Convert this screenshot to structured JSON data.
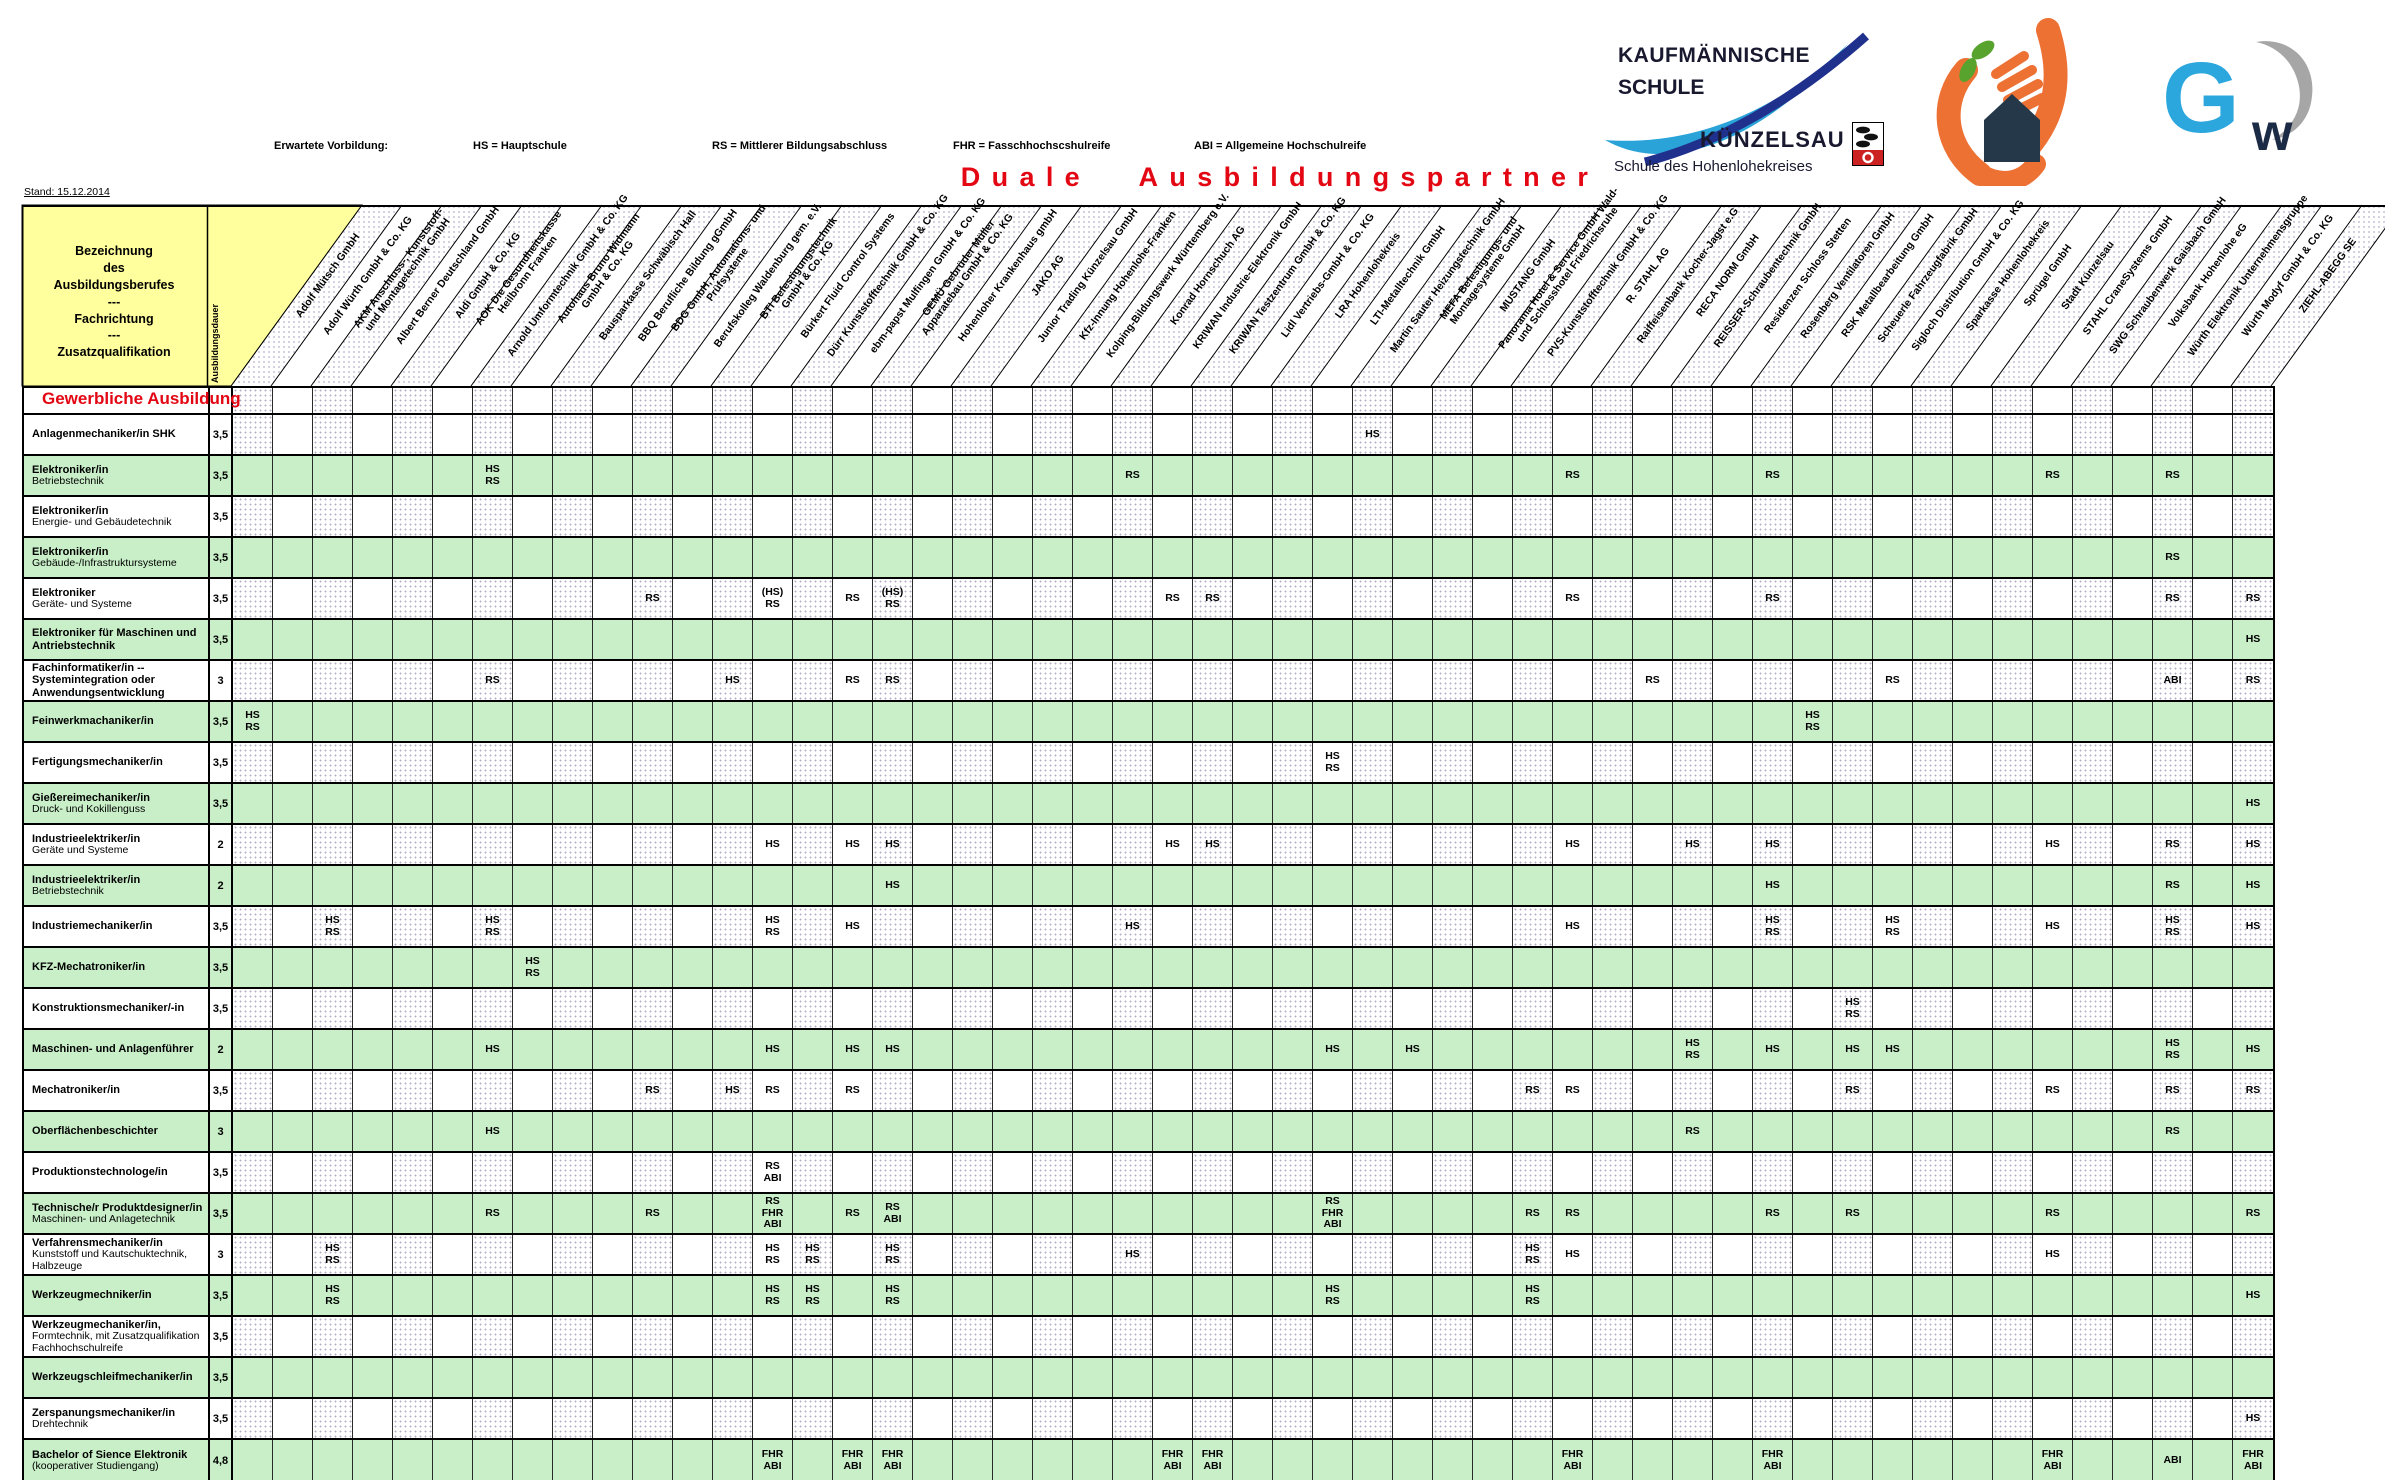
{
  "meta": {
    "stand": "Stand: 15.12.2014"
  },
  "title": "Duale Ausbildungspartner",
  "legend": {
    "title": "Erwartete Vorbildung:",
    "items": [
      "HS = Hauptschule",
      "RS = Mittlerer Bildungsabschluss",
      "FHR = Fasschhochscshulreife",
      "ABI = Allgemeine Hochschulreife"
    ]
  },
  "branding": {
    "school_line1": "KAUFMÄNNISCHE",
    "school_line2": "SCHULE",
    "school_city": "KÜNZELSAU",
    "school_subtitle": "Schule des Hohenlohekreises",
    "gw_g": "G",
    "gw_w": "w"
  },
  "colors": {
    "green": "#c8efc8",
    "yellow": "#ffff9d",
    "red": "#e30613",
    "blue_light": "#2aa3d8",
    "blue_dark": "#20318d",
    "orange": "#ee7134",
    "navy": "#25384a",
    "leaf": "#58a32e",
    "gw_blue": "#2ba7de"
  },
  "table": {
    "corner_header": "Bezeichnung\ndes\nAusbildungsberufes\n---\nFachrichtung\n---\nZusatzqualifikation",
    "duration_header": "Ausbildungsdauer",
    "section": "Gewerbliche Ausbildung",
    "companies": [
      "Adolf Mütsch GmbH",
      "Adolf Würth GmbH & Co. KG",
      "AKM Anschluss-, Kunststoff-\nund Montagetechnik GmbH",
      "Albert Berner Deutschland GmbH",
      "Aldi GmbH & Co. KG",
      "AOK Die Gesundheitskasse\nHeilbronn Franken",
      "Arnold Umformtechnik GmbH & Co. KG",
      "Autohaus Bruno Widmann\nGmbH & Co. KG",
      "Bausparkasse Schwäbisch Hall",
      "BBQ Berufliche Bildung gGmbH",
      "BDG GmbH, Automations- und\nPrüfsysteme",
      "Berufskolleg Waldenburg gem. e.V.",
      "BTI Befestigungstechnik\nGmbH & Co. KG",
      "Bürkert Fluid Control Systems",
      "Dürr Kunststofftechnik GmbH & Co. KG",
      "ebm-papst Mulfingen GmbH & Co. KG",
      "GEMÜ Gebrüder Müller\nApparatebau GmbH & Co. KG",
      "Hohenloher Krankenhaus gmbH",
      "JAKO AG",
      "Junior Trading Künzelsau GmbH",
      "Kfz-Innung Hohenlohe-Franken",
      "Kolping-Bildungswerk Württemberg e.V.",
      "Konrad Hornschuch AG",
      "KRIWAN Industrie-Elektronik GmbH",
      "KRIWAN Testzentrum GmbH & Co. KG",
      "Lidl Vertriebs-GmbH & Co. KG",
      "LRA Hohenlohekreis",
      "LTI-Metalltechnik GmbH",
      "Martin Sauter Heizungstechnik GmbH",
      "MEFA Befestigungs- und\nMontagesysteme GmbH",
      "MUSTANG GmbH",
      "Panorama Hotel & Service GmbH Wald-\nund Schlosshotel Friedrichsruhe",
      "PVS-Kunststofftechnik GmbH & Co. KG",
      "R. STAHL AG",
      "Raiffeisenbank Kocher-Jagst e.G",
      "RECA NORM GmbH",
      "REISSER-Schraubentechnik GmbH",
      "Residenzen Schloss Stetten",
      "Rosenberg Ventilatoren GmbH",
      "RSK Metallbearbeitung GmbH",
      "Scheuerle Fahrzeugfabrik GmbH",
      "Sigloch Distribution GmbH & Co. KG",
      "Sparkasse Hohenlohekreis",
      "Sprügel GmbH",
      "Stadt Künzelsau",
      "STAHL CraneSystems GmbH",
      "SWG Schraubenwerk Gaisbach GmbH",
      "Volksbank Hohenlohe eG",
      "Würth Elektronik Unternehmensgruppe",
      "Würth Modyf GmbH & Co. KG",
      "ZIEHL-ABEGG SE"
    ],
    "rows": [
      {
        "title": "Anlagenmechaniker/in SHK",
        "subtitle": "",
        "duration": "3,5",
        "cells": {
          "29": "HS"
        }
      },
      {
        "title": "Elektroniker/in",
        "subtitle": "Betriebstechnik",
        "duration": "3,5",
        "cells": {
          "7": "HS\nRS",
          "23": "RS",
          "34": "RS",
          "39": "RS",
          "46": "RS",
          "49": "RS"
        }
      },
      {
        "title": "Elektroniker/in",
        "subtitle": "Energie- und Gebäudetechnik",
        "duration": "3,5",
        "cells": {}
      },
      {
        "title": "Elektroniker/in",
        "subtitle": "Gebäude-/Infrastruktursysteme",
        "duration": "3,5",
        "cells": {
          "49": "RS"
        }
      },
      {
        "title": "Elektroniker",
        "subtitle": "Geräte- und Systeme",
        "duration": "3,5",
        "cells": {
          "11": "RS",
          "14": "(HS)\nRS",
          "16": "RS",
          "17": "(HS)\nRS",
          "24": "RS",
          "25": "RS",
          "34": "RS",
          "39": "RS",
          "49": "RS",
          "51": "RS"
        }
      },
      {
        "title": "Elektroniker für Maschinen und\nAntriebstechnik",
        "subtitle": "",
        "duration": "3,5",
        "cells": {
          "51": "HS"
        }
      },
      {
        "title": "Fachinformatiker/in --\nSystemintegration oder\nAnwendungsentwicklung",
        "subtitle": "",
        "duration": "3",
        "cells": {
          "7": "RS",
          "13": "HS",
          "16": "RS",
          "17": "RS",
          "36": "RS",
          "42": "RS",
          "49": "ABI",
          "51": "RS"
        }
      },
      {
        "title": "Feinwerkmachaniker/in",
        "subtitle": "",
        "duration": "3,5",
        "cells": {
          "1": "HS\nRS",
          "40": "HS\nRS"
        }
      },
      {
        "title": "Fertigungsmechaniker/in",
        "subtitle": "",
        "duration": "3,5",
        "cells": {
          "28": "HS\nRS"
        }
      },
      {
        "title": "Gießereimechaniker/in",
        "subtitle": "Druck- und Kokillenguss",
        "duration": "3,5",
        "cells": {
          "51": "HS"
        }
      },
      {
        "title": "Industrieelektriker/in",
        "subtitle": "Geräte und Systeme",
        "duration": "2",
        "cells": {
          "14": "HS",
          "16": "HS",
          "17": "HS",
          "24": "HS",
          "25": "HS",
          "34": "HS",
          "37": "HS",
          "39": "HS",
          "46": "HS",
          "49": "RS",
          "51": "HS"
        }
      },
      {
        "title": "Industrieelektriker/in",
        "subtitle": "Betriebstechnik",
        "duration": "2",
        "cells": {
          "17": "HS",
          "39": "HS",
          "49": "RS",
          "51": "HS"
        }
      },
      {
        "title": "Industriemechaniker/in",
        "subtitle": "",
        "duration": "3,5",
        "cells": {
          "3": "HS\nRS",
          "7": "HS\nRS",
          "14": "HS\nRS",
          "16": "HS",
          "23": "HS",
          "34": "HS",
          "39": "HS\nRS",
          "42": "HS\nRS",
          "46": "HS",
          "49": "HS\nRS",
          "51": "HS"
        }
      },
      {
        "title": "KFZ-Mechatroniker/in",
        "subtitle": "",
        "duration": "3,5",
        "cells": {
          "8": "HS\nRS"
        }
      },
      {
        "title": "Konstruktionsmechaniker/-in",
        "subtitle": "",
        "duration": "3,5",
        "cells": {
          "41": "HS\nRS"
        }
      },
      {
        "title": "Maschinen- und Anlagenführer",
        "subtitle": "",
        "duration": "2",
        "cells": {
          "7": "HS",
          "14": "HS",
          "16": "HS",
          "17": "HS",
          "28": "HS",
          "30": "HS",
          "37": "HS\nRS",
          "39": "HS",
          "41": "HS",
          "42": "HS",
          "49": "HS\nRS",
          "51": "HS"
        }
      },
      {
        "title": "Mechatroniker/in",
        "subtitle": "",
        "duration": "3,5",
        "cells": {
          "11": "RS",
          "13": "HS",
          "14": "RS",
          "16": "RS",
          "33": "RS",
          "34": "RS",
          "41": "RS",
          "46": "RS",
          "49": "RS",
          "51": "RS"
        }
      },
      {
        "title": "Oberflächenbeschichter",
        "subtitle": "",
        "duration": "3",
        "cells": {
          "7": "HS",
          "37": "RS",
          "49": "RS"
        }
      },
      {
        "title": "Produktionstechnologe/in",
        "subtitle": "",
        "duration": "3,5",
        "cells": {
          "14": "RS\nABI"
        }
      },
      {
        "title": "Technische/r Produktdesigner/in",
        "subtitle": "Maschinen- und Anlagetechnik",
        "duration": "3,5",
        "cells": {
          "7": "RS",
          "11": "RS",
          "14": "RS\nFHR\nABI",
          "16": "RS",
          "17": "RS\nABI",
          "28": "RS\nFHR\nABI",
          "33": "RS",
          "34": "RS",
          "39": "RS",
          "41": "RS",
          "46": "RS",
          "51": "RS"
        }
      },
      {
        "title": "Verfahrensmechaniker/in",
        "subtitle": "Kunststoff und Kautschuktechnik,\nHalbzeuge",
        "duration": "3",
        "cells": {
          "3": "HS\nRS",
          "14": "HS\nRS",
          "15": "HS\nRS",
          "17": "HS\nRS",
          "23": "HS",
          "33": "HS\nRS",
          "34": "HS",
          "46": "HS"
        }
      },
      {
        "title": "Werkzeugmechniker/in",
        "subtitle": "",
        "duration": "3,5",
        "cells": {
          "3": "HS\nRS",
          "14": "HS\nRS",
          "15": "HS\nRS",
          "17": "HS\nRS",
          "28": "HS\nRS",
          "33": "HS\nRS",
          "51": "HS"
        }
      },
      {
        "title": "Werkzeugmechaniker/in,",
        "subtitle": "Formtechnik, mit Zusatzqualifikation\nFachhochschulreife",
        "duration": "3,5",
        "cells": {}
      },
      {
        "title": "Werkzeugschleifmechaniker/in",
        "subtitle": "",
        "duration": "3,5",
        "cells": {}
      },
      {
        "title": "Zerspanungsmechaniker/in",
        "subtitle": "Drehtechnik",
        "duration": "3,5",
        "cells": {
          "51": "HS"
        }
      },
      {
        "title": "Bachelor of Sience Elektronik",
        "subtitle": "(kooperativer Studiengang)",
        "duration": "4,8",
        "cells": {
          "14": "FHR\nABI",
          "16": "FHR\nABI",
          "17": "FHR\nABI",
          "24": "FHR\nABI",
          "25": "FHR\nABI",
          "34": "FHR\nABI",
          "39": "FHR\nABI",
          "46": "FHR\nABI",
          "49": "ABI",
          "51": "FHR\nABI"
        }
      }
    ]
  }
}
